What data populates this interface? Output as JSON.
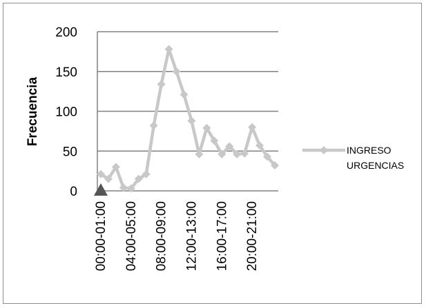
{
  "chart_data": {
    "type": "line",
    "ylabel": "Frecuencia",
    "ylim": [
      0,
      200
    ],
    "yticks": [
      0,
      50,
      100,
      150,
      200
    ],
    "x_tick_labels": [
      "00:00-01:00",
      "04:00-05:00",
      "08:00-09:00",
      "12:00-13:00",
      "16:00-17:00",
      "20:00-21:00"
    ],
    "x_tick_label_indices": [
      0,
      4,
      8,
      12,
      16,
      20
    ],
    "series": [
      {
        "name": "INGRESO URGENCIAS",
        "color": "#c8c8c8",
        "values": [
          21,
          15,
          30,
          4,
          3,
          15,
          21,
          82,
          134,
          178,
          150,
          121,
          88,
          46,
          79,
          63,
          46,
          56,
          46,
          47,
          80,
          57,
          43,
          32
        ]
      }
    ],
    "legend": {
      "position": "right",
      "line1": "INGRESO",
      "line2": "URGENCIAS"
    },
    "annotation_marker": {
      "value": 0,
      "index": 0,
      "color": "#555555",
      "shape": "triangle"
    },
    "grid": "horizontal"
  }
}
